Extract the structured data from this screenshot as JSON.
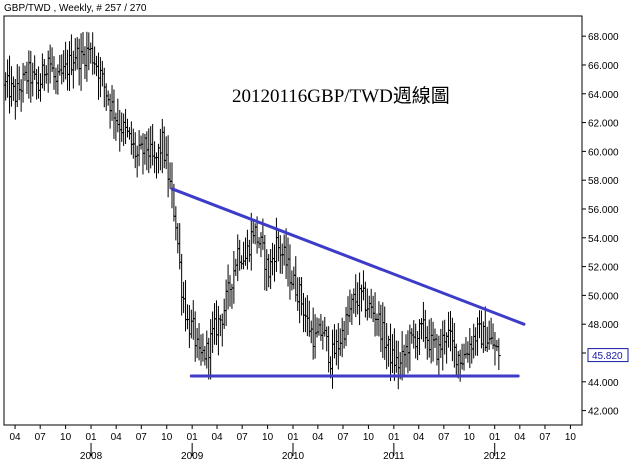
{
  "header": {
    "text": "GBP/TWD , Weekly, # 257 / 270"
  },
  "annotation": {
    "text": "20120116GBP/TWD週線圖"
  },
  "last_price": {
    "label": "45.820",
    "value": 45.82,
    "color": "#1a1aa8"
  },
  "colors": {
    "bars": "#000000",
    "trendlines": "#3c3cc8",
    "frame": "#000000",
    "background": "#ffffff"
  },
  "chart_data": {
    "type": "ohlc",
    "title": "20120116GBP/TWD週線圖",
    "symbol": "GBP/TWD",
    "interval": "Weekly",
    "grid": false,
    "y_axis": {
      "position": "right",
      "range": [
        41.0,
        69.4
      ],
      "ticks": [
        "42.000",
        "44.000",
        "46.000",
        "48.000",
        "50.000",
        "52.000",
        "54.000",
        "56.000",
        "58.000",
        "60.000",
        "62.000",
        "64.000",
        "66.000",
        "68.000"
      ]
    },
    "x_axis": {
      "range": [
        "2007-02-20",
        "2012-11-12"
      ],
      "month_ticks": [
        {
          "date": "2007-04-01",
          "label": "04"
        },
        {
          "date": "2007-07-01",
          "label": "07"
        },
        {
          "date": "2007-10-01",
          "label": "10"
        },
        {
          "date": "2008-01-01",
          "label": "01"
        },
        {
          "date": "2008-04-01",
          "label": "04"
        },
        {
          "date": "2008-07-01",
          "label": "07"
        },
        {
          "date": "2008-10-01",
          "label": "10"
        },
        {
          "date": "2009-01-01",
          "label": "01"
        },
        {
          "date": "2009-04-01",
          "label": "04"
        },
        {
          "date": "2009-07-01",
          "label": "07"
        },
        {
          "date": "2009-10-01",
          "label": "10"
        },
        {
          "date": "2010-01-01",
          "label": "01"
        },
        {
          "date": "2010-04-01",
          "label": "04"
        },
        {
          "date": "2010-07-01",
          "label": "07"
        },
        {
          "date": "2010-10-01",
          "label": "10"
        },
        {
          "date": "2011-01-01",
          "label": "01"
        },
        {
          "date": "2011-04-01",
          "label": "04"
        },
        {
          "date": "2011-07-01",
          "label": "07"
        },
        {
          "date": "2011-10-01",
          "label": "10"
        },
        {
          "date": "2012-01-01",
          "label": "01"
        },
        {
          "date": "2012-04-01",
          "label": "04"
        },
        {
          "date": "2012-07-01",
          "label": "07"
        },
        {
          "date": "2012-10-01",
          "label": "10"
        }
      ],
      "year_labels": [
        {
          "date": "2008-01-01",
          "label": "2008"
        },
        {
          "date": "2009-01-01",
          "label": "2009"
        },
        {
          "date": "2010-01-01",
          "label": "2010"
        },
        {
          "date": "2011-01-01",
          "label": "2011"
        },
        {
          "date": "2012-01-01",
          "label": "2012"
        }
      ]
    },
    "weekly_closes": [
      {
        "date": "2007-02-26",
        "close": 64.6
      },
      {
        "date": "2007-04-02",
        "close": 63.9
      },
      {
        "date": "2007-05-21",
        "close": 65.4
      },
      {
        "date": "2007-06-25",
        "close": 64.4
      },
      {
        "date": "2007-07-30",
        "close": 66.6
      },
      {
        "date": "2007-08-27",
        "close": 64.6
      },
      {
        "date": "2007-10-01",
        "close": 65.6
      },
      {
        "date": "2007-11-05",
        "close": 66.8
      },
      {
        "date": "2007-11-26",
        "close": 66.4
      },
      {
        "date": "2007-12-24",
        "close": 67.1
      },
      {
        "date": "2008-01-21",
        "close": 66.1
      },
      {
        "date": "2008-02-25",
        "close": 64.1
      },
      {
        "date": "2008-04-07",
        "close": 62.1
      },
      {
        "date": "2008-05-12",
        "close": 61.1
      },
      {
        "date": "2008-06-16",
        "close": 59.6
      },
      {
        "date": "2008-07-21",
        "close": 60.3
      },
      {
        "date": "2008-08-18",
        "close": 59.1
      },
      {
        "date": "2008-09-15",
        "close": 60.6
      },
      {
        "date": "2008-10-13",
        "close": 57.6
      },
      {
        "date": "2008-11-03",
        "close": 55.1
      },
      {
        "date": "2008-11-24",
        "close": 50.6
      },
      {
        "date": "2008-12-15",
        "close": 48.1
      },
      {
        "date": "2009-01-05",
        "close": 47.6
      },
      {
        "date": "2009-01-26",
        "close": 45.6
      },
      {
        "date": "2009-02-23",
        "close": 46.1
      },
      {
        "date": "2009-03-23",
        "close": 47.6
      },
      {
        "date": "2009-04-20",
        "close": 48.6
      },
      {
        "date": "2009-05-18",
        "close": 50.6
      },
      {
        "date": "2009-06-15",
        "close": 53.1
      },
      {
        "date": "2009-07-13",
        "close": 52.6
      },
      {
        "date": "2009-08-10",
        "close": 54.6
      },
      {
        "date": "2009-09-07",
        "close": 53.4
      },
      {
        "date": "2009-10-05",
        "close": 51.6
      },
      {
        "date": "2009-11-02",
        "close": 53.6
      },
      {
        "date": "2009-11-30",
        "close": 52.6
      },
      {
        "date": "2009-12-28",
        "close": 51.1
      },
      {
        "date": "2010-01-25",
        "close": 50.1
      },
      {
        "date": "2010-02-22",
        "close": 48.1
      },
      {
        "date": "2010-03-22",
        "close": 46.9
      },
      {
        "date": "2010-04-19",
        "close": 47.6
      },
      {
        "date": "2010-05-17",
        "close": 45.6
      },
      {
        "date": "2010-06-14",
        "close": 46.6
      },
      {
        "date": "2010-07-12",
        "close": 48.1
      },
      {
        "date": "2010-08-09",
        "close": 49.6
      },
      {
        "date": "2010-09-06",
        "close": 49.9
      },
      {
        "date": "2010-10-04",
        "close": 49.1
      },
      {
        "date": "2010-11-01",
        "close": 48.6
      },
      {
        "date": "2010-11-29",
        "close": 46.9
      },
      {
        "date": "2010-12-27",
        "close": 45.6
      },
      {
        "date": "2011-01-24",
        "close": 45.1
      },
      {
        "date": "2011-02-21",
        "close": 46.6
      },
      {
        "date": "2011-03-21",
        "close": 47.1
      },
      {
        "date": "2011-04-18",
        "close": 47.6
      },
      {
        "date": "2011-05-16",
        "close": 46.6
      },
      {
        "date": "2011-06-13",
        "close": 46.1
      },
      {
        "date": "2011-07-11",
        "close": 47.6
      },
      {
        "date": "2011-08-08",
        "close": 46.1
      },
      {
        "date": "2011-09-05",
        "close": 45.6
      },
      {
        "date": "2011-10-03",
        "close": 46.6
      },
      {
        "date": "2011-10-31",
        "close": 47.4
      },
      {
        "date": "2011-11-28",
        "close": 47.1
      },
      {
        "date": "2011-12-26",
        "close": 46.6
      },
      {
        "date": "2012-01-16",
        "close": 45.82
      }
    ],
    "trendlines": [
      {
        "label": "resistance",
        "from": {
          "date": "2008-10-20",
          "value": 57.4
        },
        "to": {
          "date": "2012-04-16",
          "value": 48.0
        }
      },
      {
        "label": "support",
        "from": {
          "date": "2008-12-29",
          "value": 44.4
        },
        "to": {
          "date": "2012-03-26",
          "value": 44.4
        }
      }
    ]
  }
}
